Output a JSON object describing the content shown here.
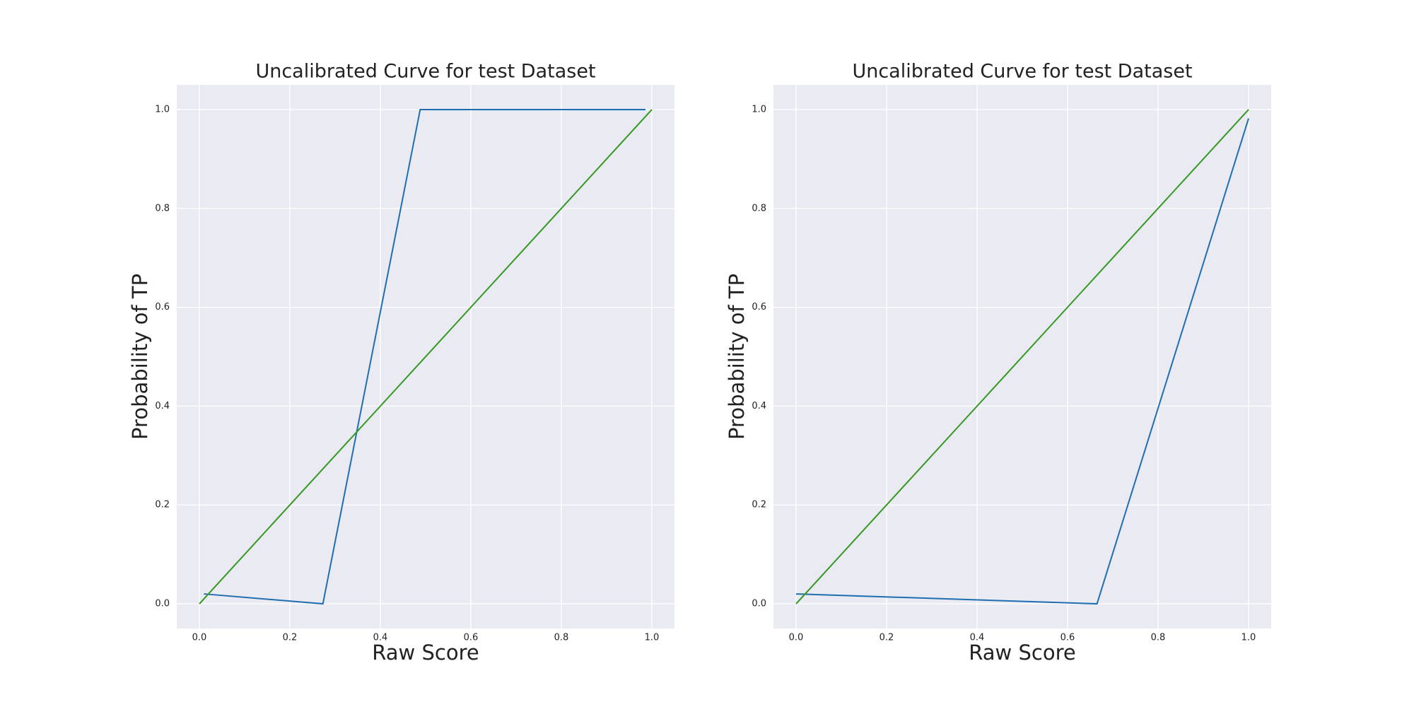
{
  "chart_data": [
    {
      "type": "line",
      "title": "Uncalibrated Curve for test Dataset",
      "xlabel": "Raw Score",
      "ylabel": "Probability of TP",
      "xlim": [
        -0.05,
        1.05
      ],
      "ylim": [
        -0.05,
        1.05
      ],
      "xticks": [
        {
          "value": 0,
          "label": "0.0"
        },
        {
          "value": 0.2,
          "label": "0.2"
        },
        {
          "value": 0.4,
          "label": "0.4"
        },
        {
          "value": 0.6,
          "label": "0.6"
        },
        {
          "value": 0.8,
          "label": "0.8"
        },
        {
          "value": 1,
          "label": "1.0"
        }
      ],
      "yticks": [
        {
          "value": 0,
          "label": "0.0"
        },
        {
          "value": 0.2,
          "label": "0.2"
        },
        {
          "value": 0.4,
          "label": "0.4"
        },
        {
          "value": 0.6,
          "label": "0.6"
        },
        {
          "value": 0.8,
          "label": "0.8"
        },
        {
          "value": 1,
          "label": "1.0"
        }
      ],
      "grid": true,
      "series": [
        {
          "color": "#1f6fb0",
          "x": [
            0.01,
            0.273,
            0.488,
            0.986
          ],
          "values": [
            0.02,
            0.0,
            1.0,
            1.0
          ]
        },
        {
          "color": "#339922",
          "x": [
            0,
            1
          ],
          "values": [
            0,
            1
          ]
        }
      ]
    },
    {
      "type": "line",
      "title": "Uncalibrated Curve for test Dataset",
      "xlabel": "Raw Score",
      "ylabel": "Probability of TP",
      "xlim": [
        -0.05,
        1.05
      ],
      "ylim": [
        -0.05,
        1.05
      ],
      "xticks": [
        {
          "value": 0,
          "label": "0.0"
        },
        {
          "value": 0.2,
          "label": "0.2"
        },
        {
          "value": 0.4,
          "label": "0.4"
        },
        {
          "value": 0.6,
          "label": "0.6"
        },
        {
          "value": 0.8,
          "label": "0.8"
        },
        {
          "value": 1,
          "label": "1.0"
        }
      ],
      "yticks": [
        {
          "value": 0,
          "label": "0.0"
        },
        {
          "value": 0.2,
          "label": "0.2"
        },
        {
          "value": 0.4,
          "label": "0.4"
        },
        {
          "value": 0.6,
          "label": "0.6"
        },
        {
          "value": 0.8,
          "label": "0.8"
        },
        {
          "value": 1,
          "label": "1.0"
        }
      ],
      "grid": true,
      "series": [
        {
          "color": "#1f6fb0",
          "x": [
            0.0,
            0.665,
            1.0
          ],
          "values": [
            0.02,
            0.0,
            0.982
          ]
        },
        {
          "color": "#339922",
          "x": [
            0,
            1
          ],
          "values": [
            0,
            1
          ]
        }
      ]
    }
  ]
}
